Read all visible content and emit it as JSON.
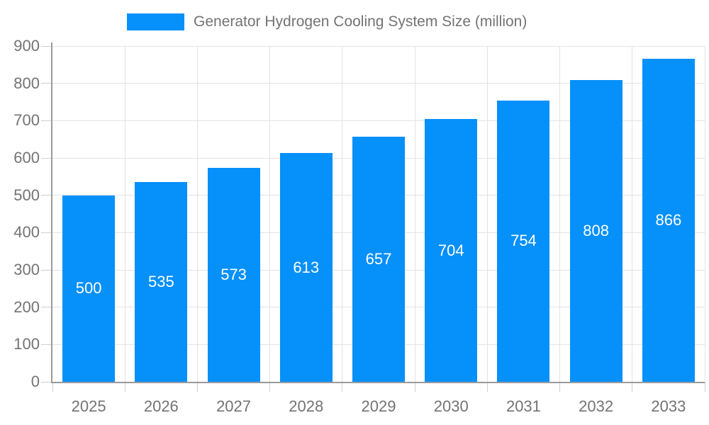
{
  "chart_data": {
    "type": "bar",
    "title": "Generator Hydrogen Cooling System Size (million)",
    "legend_position": "top",
    "categories": [
      "2025",
      "2026",
      "2027",
      "2028",
      "2029",
      "2030",
      "2031",
      "2032",
      "2033"
    ],
    "series": [
      {
        "name": "Generator Hydrogen Cooling System Size (million)",
        "values": [
          500,
          535,
          573,
          613,
          657,
          704,
          754,
          808,
          866
        ]
      }
    ],
    "xlabel": "",
    "ylabel": "",
    "ylim": [
      0,
      900
    ],
    "ytick_step": 100,
    "grid": true,
    "value_labels": "inside-center",
    "bar_color": "#0690fa",
    "value_label_color": "#ffffff",
    "grid_color": "#e3e3e3",
    "tick_color": "#cfcfcf",
    "axis_color": "#9a9a9a",
    "text_color": "#737373"
  }
}
